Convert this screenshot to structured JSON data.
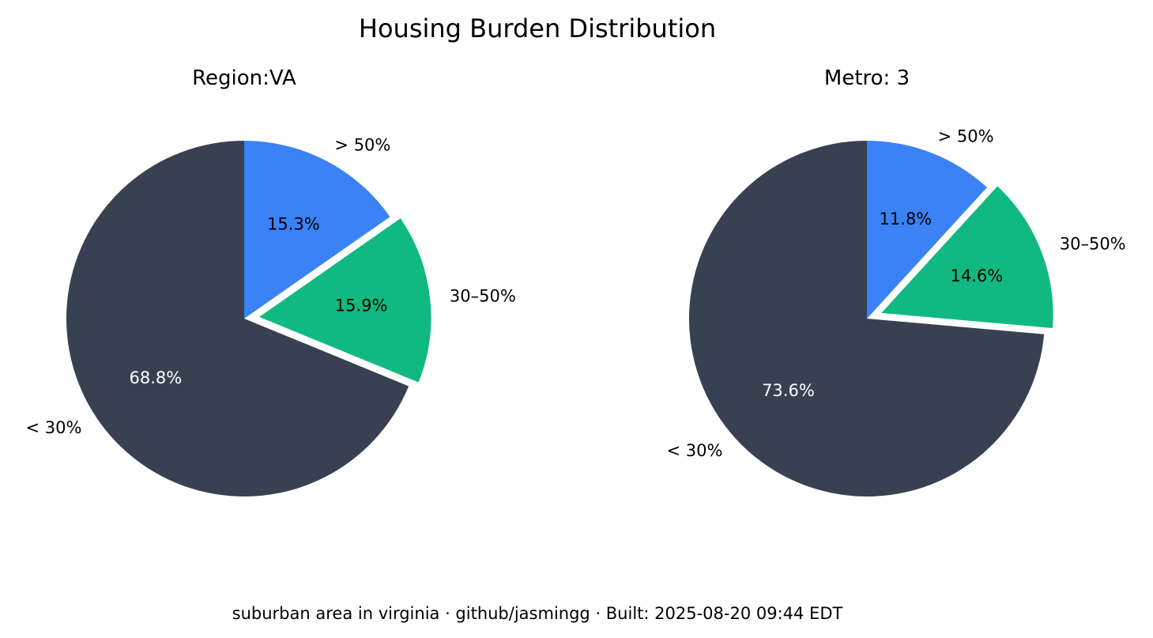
{
  "figure": {
    "title": "Housing Burden Distribution",
    "footer": "suburban area in virginia · github/jasmingg · Built: 2025-08-20 09:44 EDT"
  },
  "chart_data": [
    {
      "type": "pie",
      "title": "Region:VA",
      "start_angle_deg": 90,
      "direction": "clockwise",
      "slices": [
        {
          "label": "> 50%",
          "value": 15.3,
          "pct_label": "15.3%",
          "color": "#3b82f6",
          "pct_color": "#000000",
          "exploded": false
        },
        {
          "label": "30–50%",
          "value": 15.9,
          "pct_label": "15.9%",
          "color": "#10b981",
          "pct_color": "#000000",
          "exploded": true
        },
        {
          "label": "< 30%",
          "value": 68.8,
          "pct_label": "68.8%",
          "color": "#374151",
          "pct_color": "#ffffff",
          "exploded": false
        }
      ]
    },
    {
      "type": "pie",
      "title": "Metro: 3",
      "start_angle_deg": 90,
      "direction": "clockwise",
      "slices": [
        {
          "label": "> 50%",
          "value": 11.8,
          "pct_label": "11.8%",
          "color": "#3b82f6",
          "pct_color": "#000000",
          "exploded": false
        },
        {
          "label": "30–50%",
          "value": 14.6,
          "pct_label": "14.6%",
          "color": "#10b981",
          "pct_color": "#000000",
          "exploded": true
        },
        {
          "label": "< 30%",
          "value": 73.6,
          "pct_label": "73.6%",
          "color": "#374151",
          "pct_color": "#ffffff",
          "exploded": false
        }
      ]
    }
  ]
}
